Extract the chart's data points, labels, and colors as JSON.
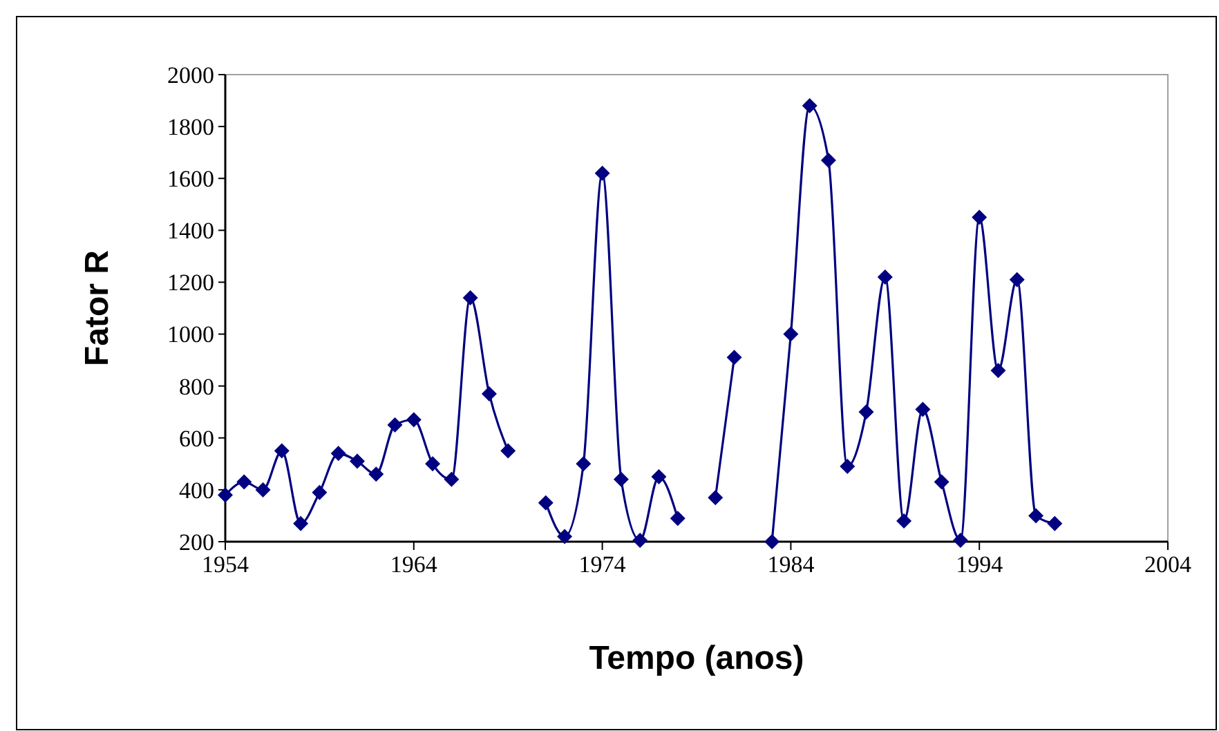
{
  "chart_data": {
    "type": "line",
    "xlabel": "Tempo (anos)",
    "ylabel": "Fator R",
    "x": [
      1954,
      1955,
      1956,
      1957,
      1958,
      1959,
      1960,
      1961,
      1962,
      1963,
      1964,
      1965,
      1966,
      1967,
      1968,
      1969,
      1970,
      1971,
      1972,
      1973,
      1974,
      1975,
      1976,
      1977,
      1978,
      1979,
      1980,
      1981,
      1982,
      1983,
      1984,
      1985,
      1986,
      1987,
      1988,
      1989,
      1990,
      1991,
      1992,
      1993,
      1994,
      1995,
      1996,
      1997,
      1998
    ],
    "series": [
      {
        "color": "#000080",
        "values": [
          380,
          430,
          400,
          550,
          270,
          390,
          540,
          510,
          460,
          650,
          670,
          500,
          440,
          1140,
          770,
          550,
          null,
          350,
          220,
          500,
          1620,
          440,
          205,
          450,
          290,
          null,
          370,
          910,
          null,
          200,
          1000,
          1880,
          1670,
          490,
          700,
          1220,
          280,
          710,
          430,
          205,
          1450,
          860,
          1210,
          300,
          270
        ]
      }
    ],
    "xlim": [
      1954,
      2004
    ],
    "xticks": [
      1954,
      1964,
      1974,
      1984,
      1994,
      2004
    ],
    "ylim": [
      200,
      2000
    ],
    "yticks": [
      200,
      400,
      600,
      800,
      1000,
      1200,
      1400,
      1600,
      1800,
      2000
    ],
    "grid": false,
    "marker": "diamond",
    "line_style": "solid"
  }
}
